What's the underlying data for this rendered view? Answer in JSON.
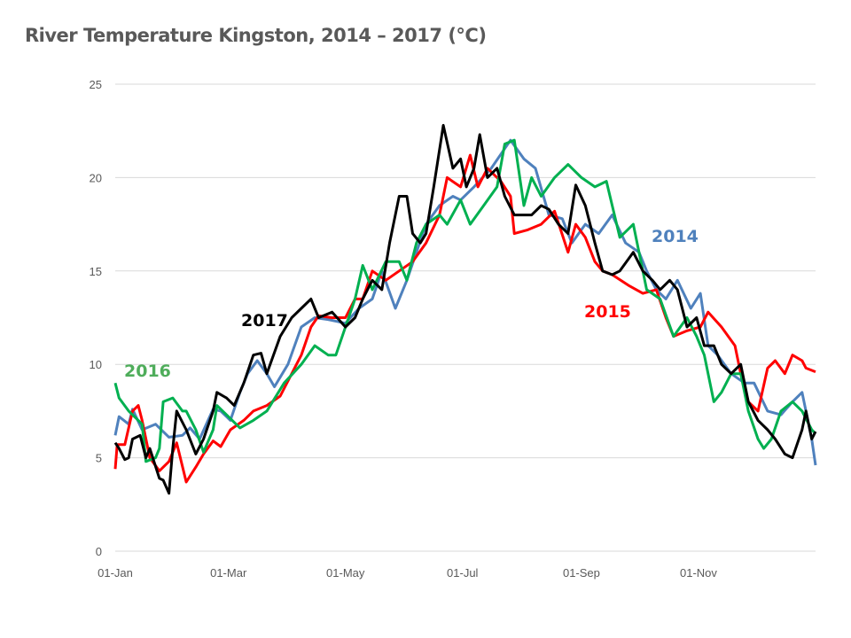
{
  "chart_data": {
    "type": "line",
    "title": "River Temperature Kingston, 2014 – 2017  (°C)",
    "xlabel": "",
    "ylabel": "",
    "x_unit": "day of year",
    "xlim": [
      0,
      365
    ],
    "ylim": [
      0,
      25
    ],
    "grid": true,
    "yticks": [
      0,
      5,
      10,
      15,
      20,
      25
    ],
    "xticks": [
      {
        "day": 0,
        "label": "01-Jan"
      },
      {
        "day": 59,
        "label": "01-Mar"
      },
      {
        "day": 120,
        "label": "01-May"
      },
      {
        "day": 181,
        "label": "01-Jul"
      },
      {
        "day": 243,
        "label": "01-Sep"
      },
      {
        "day": 304,
        "label": "01-Nov"
      }
    ],
    "series": [
      {
        "name": "2014",
        "color": "#4f81bd",
        "label_color": "#4f81bd",
        "points": [
          [
            0,
            6.2
          ],
          [
            2,
            7.2
          ],
          [
            7,
            6.8
          ],
          [
            9,
            7.6
          ],
          [
            14,
            6.5
          ],
          [
            21,
            6.8
          ],
          [
            28,
            6.1
          ],
          [
            35,
            6.2
          ],
          [
            39,
            6.6
          ],
          [
            44,
            6.0
          ],
          [
            51,
            7.6
          ],
          [
            55,
            7.5
          ],
          [
            60,
            7.0
          ],
          [
            65,
            8.5
          ],
          [
            69,
            9.5
          ],
          [
            74,
            10.2
          ],
          [
            79,
            9.5
          ],
          [
            83,
            8.8
          ],
          [
            90,
            10.0
          ],
          [
            97,
            12.0
          ],
          [
            104,
            12.5
          ],
          [
            111,
            12.4
          ],
          [
            120,
            12.2
          ],
          [
            127,
            13.0
          ],
          [
            134,
            13.5
          ],
          [
            139,
            15.0
          ],
          [
            146,
            13.0
          ],
          [
            152,
            14.5
          ],
          [
            157,
            16.0
          ],
          [
            162,
            17.5
          ],
          [
            169,
            18.5
          ],
          [
            176,
            19.0
          ],
          [
            180,
            18.8
          ],
          [
            187,
            19.5
          ],
          [
            196,
            20.5
          ],
          [
            206,
            22.0
          ],
          [
            213,
            21.0
          ],
          [
            219,
            20.5
          ],
          [
            226,
            18.0
          ],
          [
            233,
            17.8
          ],
          [
            238,
            16.5
          ],
          [
            245,
            17.5
          ],
          [
            252,
            17.0
          ],
          [
            259,
            18.0
          ],
          [
            266,
            16.5
          ],
          [
            273,
            16.0
          ],
          [
            277,
            15.0
          ],
          [
            282,
            14.0
          ],
          [
            287,
            13.5
          ],
          [
            293,
            14.5
          ],
          [
            300,
            13.0
          ],
          [
            305,
            13.8
          ],
          [
            309,
            11.0
          ],
          [
            314,
            10.5
          ],
          [
            321,
            9.5
          ],
          [
            328,
            9.0
          ],
          [
            333,
            9.0
          ],
          [
            340,
            7.5
          ],
          [
            347,
            7.3
          ],
          [
            353,
            8.0
          ],
          [
            358,
            8.5
          ],
          [
            363,
            6.0
          ],
          [
            365,
            4.6
          ]
        ]
      },
      {
        "name": "2015",
        "color": "#ff0000",
        "label_color": "#ff0000",
        "points": [
          [
            0,
            4.4
          ],
          [
            1,
            5.7
          ],
          [
            5,
            5.7
          ],
          [
            9,
            7.5
          ],
          [
            12,
            7.8
          ],
          [
            14,
            7.0
          ],
          [
            18,
            5.0
          ],
          [
            23,
            4.3
          ],
          [
            28,
            4.8
          ],
          [
            32,
            5.8
          ],
          [
            37,
            3.7
          ],
          [
            42,
            4.5
          ],
          [
            46,
            5.2
          ],
          [
            51,
            5.9
          ],
          [
            55,
            5.6
          ],
          [
            60,
            6.5
          ],
          [
            67,
            7.0
          ],
          [
            72,
            7.5
          ],
          [
            79,
            7.8
          ],
          [
            86,
            8.3
          ],
          [
            92,
            9.5
          ],
          [
            97,
            10.5
          ],
          [
            102,
            12.0
          ],
          [
            106,
            12.6
          ],
          [
            113,
            12.5
          ],
          [
            120,
            12.5
          ],
          [
            125,
            13.5
          ],
          [
            129,
            13.5
          ],
          [
            134,
            15.0
          ],
          [
            141,
            14.5
          ],
          [
            148,
            15.0
          ],
          [
            155,
            15.5
          ],
          [
            162,
            16.5
          ],
          [
            169,
            18.0
          ],
          [
            173,
            20.0
          ],
          [
            180,
            19.5
          ],
          [
            185,
            21.2
          ],
          [
            189,
            19.5
          ],
          [
            194,
            20.5
          ],
          [
            201,
            19.8
          ],
          [
            206,
            19.0
          ],
          [
            208,
            17.0
          ],
          [
            215,
            17.2
          ],
          [
            222,
            17.5
          ],
          [
            229,
            18.2
          ],
          [
            236,
            16.0
          ],
          [
            240,
            17.5
          ],
          [
            245,
            16.8
          ],
          [
            250,
            15.5
          ],
          [
            254,
            15.0
          ],
          [
            259,
            14.8
          ],
          [
            268,
            14.2
          ],
          [
            275,
            13.8
          ],
          [
            282,
            14.0
          ],
          [
            287,
            12.5
          ],
          [
            291,
            11.5
          ],
          [
            298,
            11.8
          ],
          [
            305,
            12.0
          ],
          [
            309,
            12.8
          ],
          [
            316,
            12.0
          ],
          [
            323,
            11.0
          ],
          [
            326,
            9.5
          ],
          [
            330,
            8.0
          ],
          [
            335,
            7.5
          ],
          [
            340,
            9.8
          ],
          [
            344,
            10.2
          ],
          [
            349,
            9.5
          ],
          [
            353,
            10.5
          ],
          [
            358,
            10.2
          ],
          [
            360,
            9.8
          ],
          [
            365,
            9.6
          ]
        ]
      },
      {
        "name": "2016",
        "color": "#00b050",
        "label_color": "#4fad5b",
        "points": [
          [
            0,
            9.0
          ],
          [
            2,
            8.2
          ],
          [
            7,
            7.5
          ],
          [
            12,
            7.0
          ],
          [
            14,
            6.8
          ],
          [
            16,
            4.8
          ],
          [
            21,
            5.0
          ],
          [
            23,
            5.5
          ],
          [
            25,
            8.0
          ],
          [
            30,
            8.2
          ],
          [
            35,
            7.5
          ],
          [
            37,
            7.5
          ],
          [
            42,
            6.5
          ],
          [
            46,
            5.3
          ],
          [
            51,
            6.5
          ],
          [
            53,
            7.8
          ],
          [
            58,
            7.3
          ],
          [
            65,
            6.6
          ],
          [
            72,
            7.0
          ],
          [
            79,
            7.5
          ],
          [
            88,
            9.0
          ],
          [
            97,
            10.0
          ],
          [
            104,
            11.0
          ],
          [
            111,
            10.5
          ],
          [
            115,
            10.5
          ],
          [
            120,
            12.0
          ],
          [
            125,
            13.5
          ],
          [
            129,
            15.3
          ],
          [
            134,
            14.0
          ],
          [
            141,
            15.5
          ],
          [
            148,
            15.5
          ],
          [
            152,
            14.5
          ],
          [
            157,
            16.5
          ],
          [
            162,
            17.5
          ],
          [
            169,
            18.0
          ],
          [
            173,
            17.5
          ],
          [
            180,
            18.8
          ],
          [
            185,
            17.5
          ],
          [
            192,
            18.5
          ],
          [
            199,
            19.5
          ],
          [
            203,
            21.8
          ],
          [
            208,
            22.0
          ],
          [
            213,
            18.5
          ],
          [
            217,
            20.0
          ],
          [
            222,
            19.0
          ],
          [
            229,
            20.0
          ],
          [
            236,
            20.7
          ],
          [
            243,
            20.0
          ],
          [
            250,
            19.5
          ],
          [
            256,
            19.8
          ],
          [
            263,
            16.8
          ],
          [
            270,
            17.5
          ],
          [
            277,
            14.0
          ],
          [
            284,
            13.5
          ],
          [
            291,
            11.5
          ],
          [
            298,
            12.5
          ],
          [
            303,
            11.5
          ],
          [
            307,
            10.5
          ],
          [
            312,
            8.0
          ],
          [
            316,
            8.5
          ],
          [
            321,
            9.5
          ],
          [
            326,
            9.5
          ],
          [
            330,
            7.5
          ],
          [
            335,
            6.0
          ],
          [
            338,
            5.5
          ],
          [
            342,
            6.0
          ],
          [
            347,
            7.5
          ],
          [
            353,
            8.0
          ],
          [
            358,
            7.5
          ],
          [
            363,
            6.5
          ],
          [
            365,
            6.3
          ]
        ]
      },
      {
        "name": "2017",
        "color": "#000000",
        "label_color": "#000000",
        "points": [
          [
            0,
            5.8
          ],
          [
            2,
            5.5
          ],
          [
            5,
            4.9
          ],
          [
            7,
            5.0
          ],
          [
            9,
            6.0
          ],
          [
            13,
            6.2
          ],
          [
            16,
            5.0
          ],
          [
            18,
            5.5
          ],
          [
            23,
            3.9
          ],
          [
            25,
            3.8
          ],
          [
            28,
            3.1
          ],
          [
            30,
            5.5
          ],
          [
            32,
            7.5
          ],
          [
            37,
            6.5
          ],
          [
            42,
            5.2
          ],
          [
            46,
            6.0
          ],
          [
            51,
            7.5
          ],
          [
            53,
            8.5
          ],
          [
            58,
            8.2
          ],
          [
            62,
            7.8
          ],
          [
            67,
            9.0
          ],
          [
            72,
            10.5
          ],
          [
            76,
            10.6
          ],
          [
            79,
            9.5
          ],
          [
            86,
            11.5
          ],
          [
            92,
            12.5
          ],
          [
            97,
            13.0
          ],
          [
            102,
            13.5
          ],
          [
            106,
            12.5
          ],
          [
            113,
            12.8
          ],
          [
            120,
            12.0
          ],
          [
            125,
            12.5
          ],
          [
            129,
            13.5
          ],
          [
            134,
            14.5
          ],
          [
            139,
            14.0
          ],
          [
            143,
            16.5
          ],
          [
            148,
            19.0
          ],
          [
            152,
            19.0
          ],
          [
            155,
            17.0
          ],
          [
            159,
            16.5
          ],
          [
            162,
            17.0
          ],
          [
            166,
            19.5
          ],
          [
            171,
            22.8
          ],
          [
            176,
            20.5
          ],
          [
            180,
            21.0
          ],
          [
            183,
            19.5
          ],
          [
            187,
            20.5
          ],
          [
            190,
            22.3
          ],
          [
            194,
            20.0
          ],
          [
            199,
            20.5
          ],
          [
            203,
            19.0
          ],
          [
            208,
            18.0
          ],
          [
            217,
            18.0
          ],
          [
            222,
            18.5
          ],
          [
            226,
            18.3
          ],
          [
            231,
            17.5
          ],
          [
            236,
            17.0
          ],
          [
            240,
            19.6
          ],
          [
            245,
            18.5
          ],
          [
            250,
            16.5
          ],
          [
            254,
            15.0
          ],
          [
            259,
            14.8
          ],
          [
            263,
            15.0
          ],
          [
            270,
            16.0
          ],
          [
            275,
            15.0
          ],
          [
            280,
            14.5
          ],
          [
            284,
            14.0
          ],
          [
            289,
            14.5
          ],
          [
            293,
            14.0
          ],
          [
            298,
            12.0
          ],
          [
            303,
            12.5
          ],
          [
            307,
            11.0
          ],
          [
            312,
            11.0
          ],
          [
            316,
            10.0
          ],
          [
            321,
            9.5
          ],
          [
            326,
            10.0
          ],
          [
            330,
            8.0
          ],
          [
            335,
            7.0
          ],
          [
            340,
            6.5
          ],
          [
            344,
            6.0
          ],
          [
            349,
            5.2
          ],
          [
            353,
            5.0
          ],
          [
            358,
            6.5
          ],
          [
            360,
            7.5
          ],
          [
            363,
            6.0
          ],
          [
            365,
            6.4
          ]
        ]
      }
    ]
  }
}
